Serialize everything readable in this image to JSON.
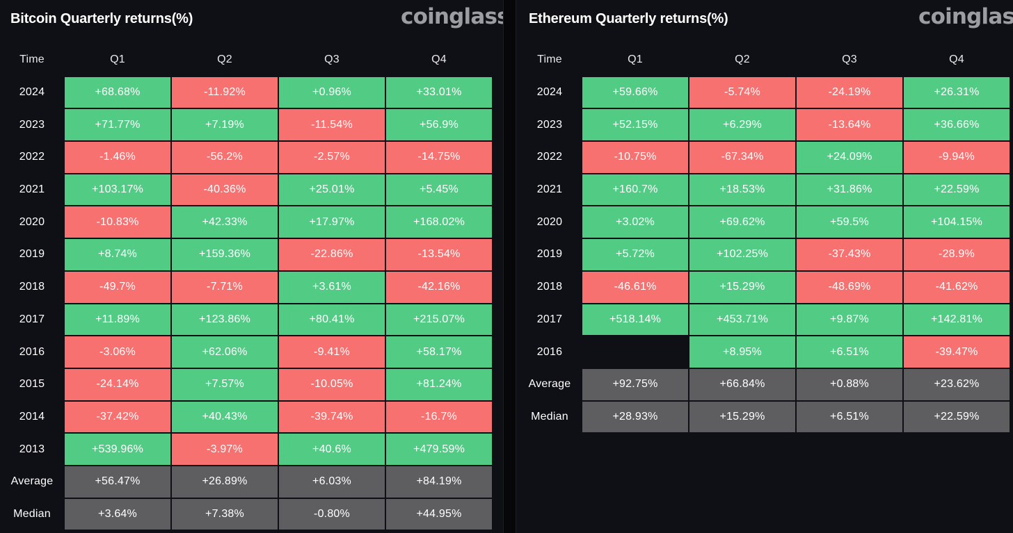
{
  "btc": {
    "title": "Bitcoin Quarterly returns(%)",
    "brand": "coinglass",
    "headers": [
      "Time",
      "Q1",
      "Q2",
      "Q3",
      "Q4"
    ],
    "rows": [
      {
        "label": "2024",
        "cells": [
          {
            "v": "+68.68%",
            "t": "pos"
          },
          {
            "v": "-11.92%",
            "t": "neg"
          },
          {
            "v": "+0.96%",
            "t": "pos"
          },
          {
            "v": "+33.01%",
            "t": "pos"
          }
        ]
      },
      {
        "label": "2023",
        "cells": [
          {
            "v": "+71.77%",
            "t": "pos"
          },
          {
            "v": "+7.19%",
            "t": "pos"
          },
          {
            "v": "-11.54%",
            "t": "neg"
          },
          {
            "v": "+56.9%",
            "t": "pos"
          }
        ]
      },
      {
        "label": "2022",
        "cells": [
          {
            "v": "-1.46%",
            "t": "neg"
          },
          {
            "v": "-56.2%",
            "t": "neg"
          },
          {
            "v": "-2.57%",
            "t": "neg"
          },
          {
            "v": "-14.75%",
            "t": "neg"
          }
        ]
      },
      {
        "label": "2021",
        "cells": [
          {
            "v": "+103.17%",
            "t": "pos"
          },
          {
            "v": "-40.36%",
            "t": "neg"
          },
          {
            "v": "+25.01%",
            "t": "pos"
          },
          {
            "v": "+5.45%",
            "t": "pos"
          }
        ]
      },
      {
        "label": "2020",
        "cells": [
          {
            "v": "-10.83%",
            "t": "neg"
          },
          {
            "v": "+42.33%",
            "t": "pos"
          },
          {
            "v": "+17.97%",
            "t": "pos"
          },
          {
            "v": "+168.02%",
            "t": "pos"
          }
        ]
      },
      {
        "label": "2019",
        "cells": [
          {
            "v": "+8.74%",
            "t": "pos"
          },
          {
            "v": "+159.36%",
            "t": "pos"
          },
          {
            "v": "-22.86%",
            "t": "neg"
          },
          {
            "v": "-13.54%",
            "t": "neg"
          }
        ]
      },
      {
        "label": "2018",
        "cells": [
          {
            "v": "-49.7%",
            "t": "neg"
          },
          {
            "v": "-7.71%",
            "t": "neg"
          },
          {
            "v": "+3.61%",
            "t": "pos"
          },
          {
            "v": "-42.16%",
            "t": "neg"
          }
        ]
      },
      {
        "label": "2017",
        "cells": [
          {
            "v": "+11.89%",
            "t": "pos"
          },
          {
            "v": "+123.86%",
            "t": "pos"
          },
          {
            "v": "+80.41%",
            "t": "pos"
          },
          {
            "v": "+215.07%",
            "t": "pos"
          }
        ]
      },
      {
        "label": "2016",
        "cells": [
          {
            "v": "-3.06%",
            "t": "neg"
          },
          {
            "v": "+62.06%",
            "t": "pos"
          },
          {
            "v": "-9.41%",
            "t": "neg"
          },
          {
            "v": "+58.17%",
            "t": "pos"
          }
        ]
      },
      {
        "label": "2015",
        "cells": [
          {
            "v": "-24.14%",
            "t": "neg"
          },
          {
            "v": "+7.57%",
            "t": "pos"
          },
          {
            "v": "-10.05%",
            "t": "neg"
          },
          {
            "v": "+81.24%",
            "t": "pos"
          }
        ]
      },
      {
        "label": "2014",
        "cells": [
          {
            "v": "-37.42%",
            "t": "neg"
          },
          {
            "v": "+40.43%",
            "t": "pos"
          },
          {
            "v": "-39.74%",
            "t": "neg"
          },
          {
            "v": "-16.7%",
            "t": "neg"
          }
        ]
      },
      {
        "label": "2013",
        "cells": [
          {
            "v": "+539.96%",
            "t": "pos"
          },
          {
            "v": "-3.97%",
            "t": "neg"
          },
          {
            "v": "+40.6%",
            "t": "pos"
          },
          {
            "v": "+479.59%",
            "t": "pos"
          }
        ]
      },
      {
        "label": "Average",
        "cells": [
          {
            "v": "+56.47%",
            "t": "stat"
          },
          {
            "v": "+26.89%",
            "t": "stat"
          },
          {
            "v": "+6.03%",
            "t": "stat"
          },
          {
            "v": "+84.19%",
            "t": "stat"
          }
        ]
      },
      {
        "label": "Median",
        "cells": [
          {
            "v": "+3.64%",
            "t": "stat"
          },
          {
            "v": "+7.38%",
            "t": "stat"
          },
          {
            "v": "-0.80%",
            "t": "stat"
          },
          {
            "v": "+44.95%",
            "t": "stat"
          }
        ]
      }
    ]
  },
  "eth": {
    "title": "Ethereum Quarterly returns(%)",
    "brand": "coinglass",
    "headers": [
      "Time",
      "Q1",
      "Q2",
      "Q3",
      "Q4"
    ],
    "rows": [
      {
        "label": "2024",
        "cells": [
          {
            "v": "+59.66%",
            "t": "pos"
          },
          {
            "v": "-5.74%",
            "t": "neg"
          },
          {
            "v": "-24.19%",
            "t": "neg"
          },
          {
            "v": "+26.31%",
            "t": "pos"
          }
        ]
      },
      {
        "label": "2023",
        "cells": [
          {
            "v": "+52.15%",
            "t": "pos"
          },
          {
            "v": "+6.29%",
            "t": "pos"
          },
          {
            "v": "-13.64%",
            "t": "neg"
          },
          {
            "v": "+36.66%",
            "t": "pos"
          }
        ]
      },
      {
        "label": "2022",
        "cells": [
          {
            "v": "-10.75%",
            "t": "neg"
          },
          {
            "v": "-67.34%",
            "t": "neg"
          },
          {
            "v": "+24.09%",
            "t": "pos"
          },
          {
            "v": "-9.94%",
            "t": "neg"
          }
        ]
      },
      {
        "label": "2021",
        "cells": [
          {
            "v": "+160.7%",
            "t": "pos"
          },
          {
            "v": "+18.53%",
            "t": "pos"
          },
          {
            "v": "+31.86%",
            "t": "pos"
          },
          {
            "v": "+22.59%",
            "t": "pos"
          }
        ]
      },
      {
        "label": "2020",
        "cells": [
          {
            "v": "+3.02%",
            "t": "pos"
          },
          {
            "v": "+69.62%",
            "t": "pos"
          },
          {
            "v": "+59.5%",
            "t": "pos"
          },
          {
            "v": "+104.15%",
            "t": "pos"
          }
        ]
      },
      {
        "label": "2019",
        "cells": [
          {
            "v": "+5.72%",
            "t": "pos"
          },
          {
            "v": "+102.25%",
            "t": "pos"
          },
          {
            "v": "-37.43%",
            "t": "neg"
          },
          {
            "v": "-28.9%",
            "t": "neg"
          }
        ]
      },
      {
        "label": "2018",
        "cells": [
          {
            "v": "-46.61%",
            "t": "neg"
          },
          {
            "v": "+15.29%",
            "t": "pos"
          },
          {
            "v": "-48.69%",
            "t": "neg"
          },
          {
            "v": "-41.62%",
            "t": "neg"
          }
        ]
      },
      {
        "label": "2017",
        "cells": [
          {
            "v": "+518.14%",
            "t": "pos"
          },
          {
            "v": "+453.71%",
            "t": "pos"
          },
          {
            "v": "+9.87%",
            "t": "pos"
          },
          {
            "v": "+142.81%",
            "t": "pos"
          }
        ]
      },
      {
        "label": "2016",
        "cells": [
          {
            "v": "",
            "t": "empty"
          },
          {
            "v": "+8.95%",
            "t": "pos"
          },
          {
            "v": "+6.51%",
            "t": "pos"
          },
          {
            "v": "-39.47%",
            "t": "neg"
          }
        ]
      },
      {
        "label": "Average",
        "cells": [
          {
            "v": "+92.75%",
            "t": "stat"
          },
          {
            "v": "+66.84%",
            "t": "stat"
          },
          {
            "v": "+0.88%",
            "t": "stat"
          },
          {
            "v": "+23.62%",
            "t": "stat"
          }
        ]
      },
      {
        "label": "Median",
        "cells": [
          {
            "v": "+28.93%",
            "t": "stat"
          },
          {
            "v": "+15.29%",
            "t": "stat"
          },
          {
            "v": "+6.51%",
            "t": "stat"
          },
          {
            "v": "+22.59%",
            "t": "stat"
          }
        ]
      }
    ]
  },
  "colors": {
    "positive": "#52cb85",
    "negative": "#f87171",
    "stat": "#5e5e61",
    "background": "#0f1015",
    "brand": "#9b9da3"
  }
}
